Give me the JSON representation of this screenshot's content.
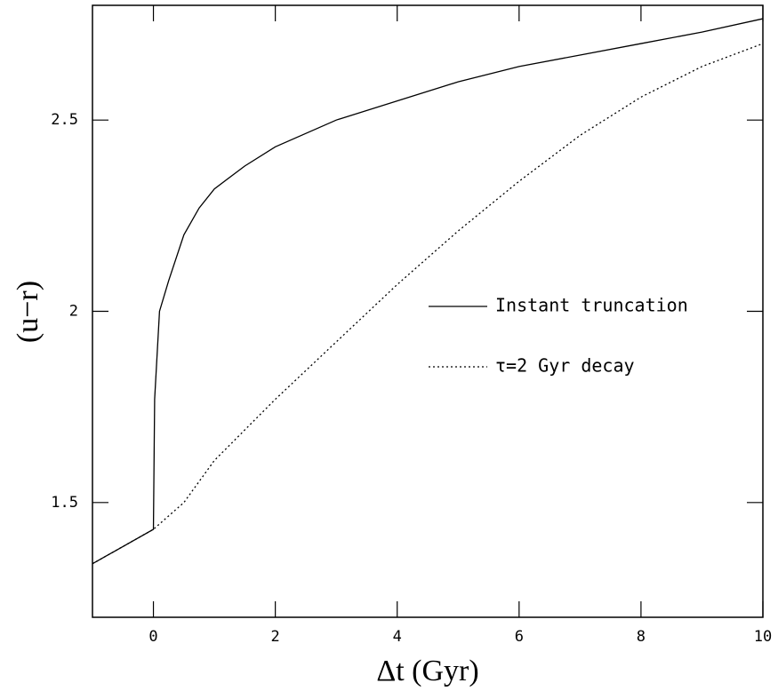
{
  "chart_data": {
    "type": "line",
    "x_label": "Δt (Gyr)",
    "y_label": "(u−r)",
    "xlim": [
      -1,
      10
    ],
    "xticks": [
      0,
      2,
      4,
      6,
      8,
      10
    ],
    "ylim": [
      1.2,
      2.8
    ],
    "yticks": [
      1.5,
      2,
      2.5
    ],
    "legend": "right",
    "series": [
      {
        "name": "Instant truncation",
        "color": "#000000",
        "dash": "solid",
        "x": [
          -1,
          0,
          0,
          0.02,
          0.1,
          0.25,
          0.5,
          0.75,
          1,
          1.5,
          2,
          3,
          4,
          5,
          6,
          7,
          8,
          9,
          10
        ],
        "values": [
          1.34,
          1.43,
          1.43,
          1.77,
          2.0,
          2.08,
          2.2,
          2.27,
          2.32,
          2.38,
          2.43,
          2.5,
          2.55,
          2.6,
          2.64,
          2.67,
          2.7,
          2.73,
          2.765
        ]
      },
      {
        "name": "τ=2 Gyr decay",
        "color": "#000000",
        "dash": "dotted",
        "x": [
          -1,
          0,
          0.5,
          1,
          2,
          3,
          4,
          5,
          6,
          7,
          8,
          9,
          10
        ],
        "values": [
          1.34,
          1.43,
          1.5,
          1.61,
          1.77,
          1.92,
          2.07,
          2.21,
          2.34,
          2.46,
          2.56,
          2.64,
          2.7
        ]
      }
    ]
  }
}
